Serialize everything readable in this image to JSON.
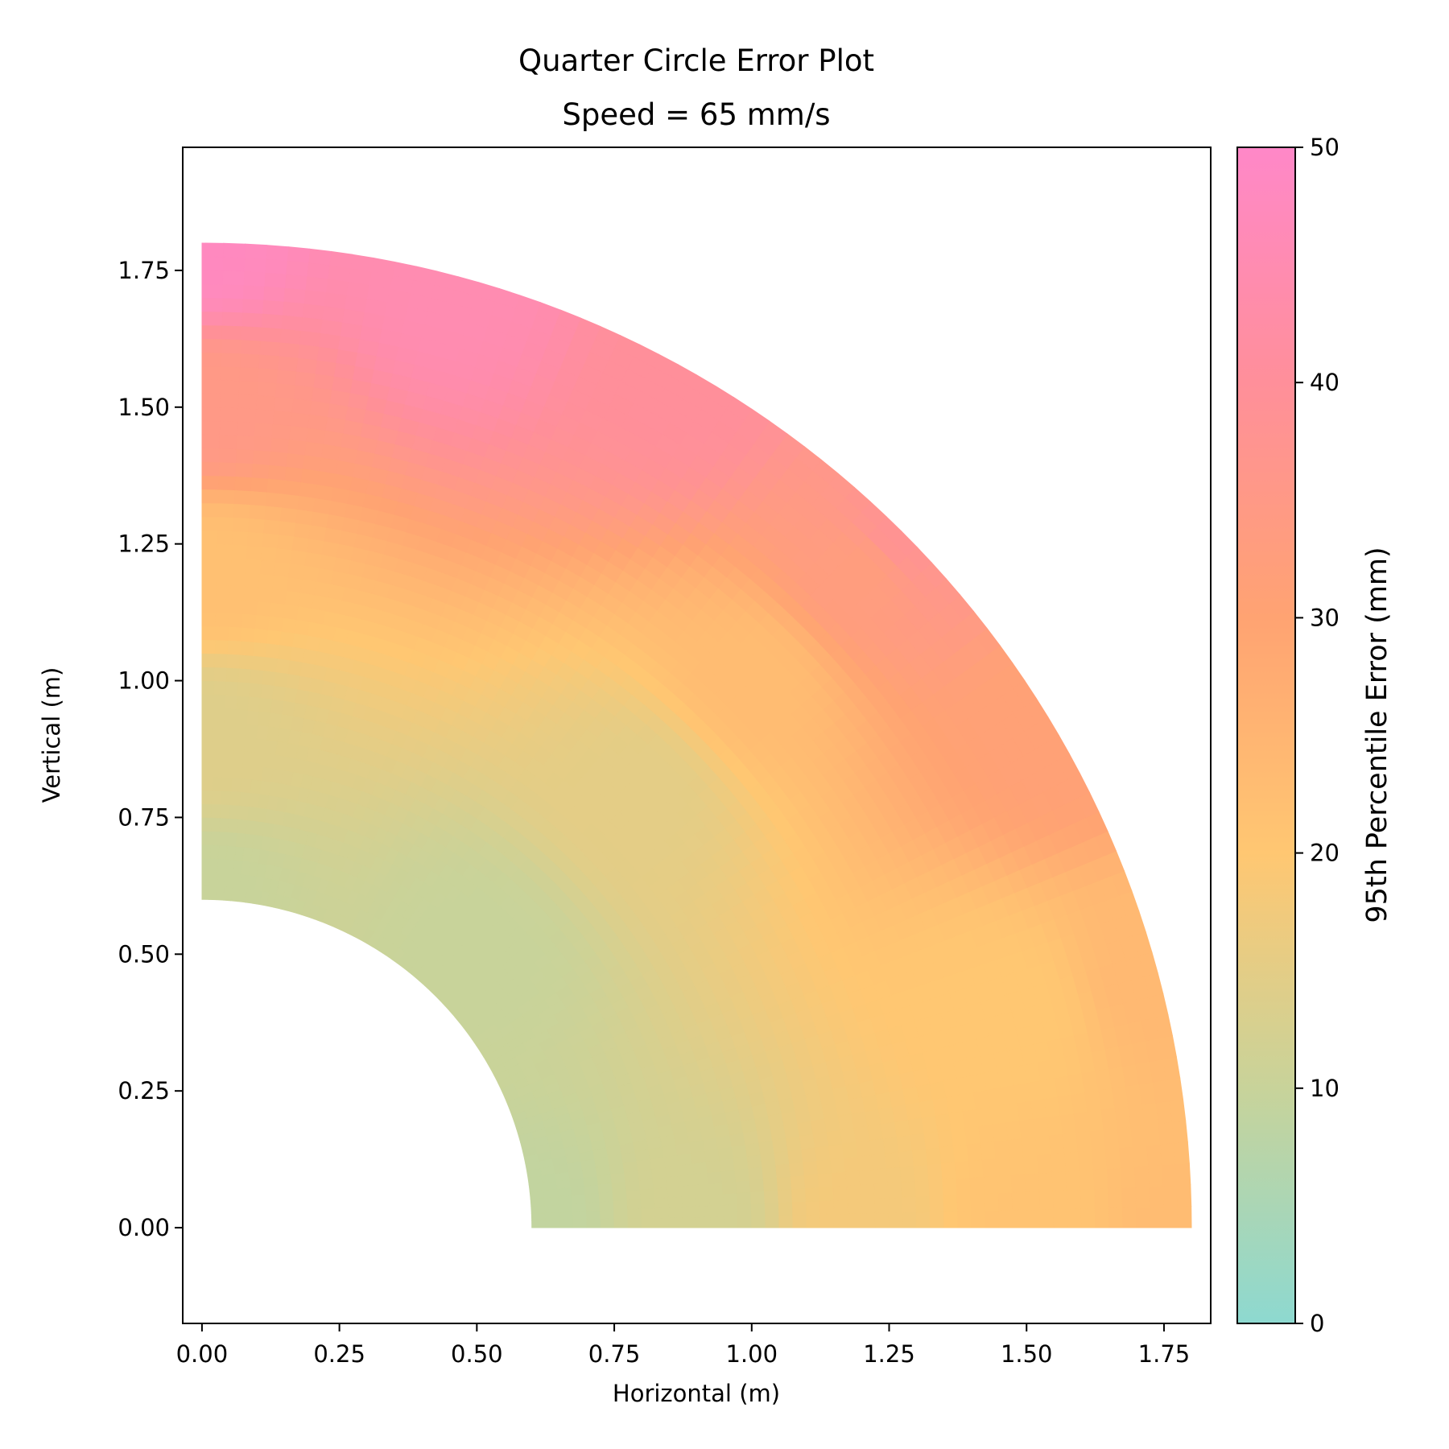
{
  "chart_data": {
    "type": "heatmap",
    "subtype": "polar-annular-sector",
    "title": "Quarter Circle Error Plot",
    "subtitle": "Speed = 65 mm/s",
    "xlabel": "Horizontal (m)",
    "ylabel": "Vertical (m)",
    "xlim": [
      -0.035,
      1.835
    ],
    "ylim": [
      -0.175,
      1.975
    ],
    "xticks": [
      0.0,
      0.25,
      0.5,
      0.75,
      1.0,
      1.25,
      1.5,
      1.75
    ],
    "xtick_labels": [
      "0.00",
      "0.25",
      "0.50",
      "0.75",
      "1.00",
      "1.25",
      "1.50",
      "1.75"
    ],
    "yticks": [
      0.0,
      0.25,
      0.5,
      0.75,
      1.0,
      1.25,
      1.5,
      1.75
    ],
    "ytick_labels": [
      "0.00",
      "0.25",
      "0.50",
      "0.75",
      "1.00",
      "1.25",
      "1.50",
      "1.75"
    ],
    "grid": false,
    "region": {
      "r_min": 0.6,
      "r_max": 1.8,
      "theta_min_deg": 0,
      "theta_max_deg": 90
    },
    "field_samples": [
      {
        "x": 0.6,
        "y": 0.0,
        "value": 9
      },
      {
        "x": 0.0,
        "y": 0.6,
        "value": 10
      },
      {
        "x": 0.9,
        "y": 0.0,
        "value": 12
      },
      {
        "x": 1.2,
        "y": 0.0,
        "value": 18
      },
      {
        "x": 1.5,
        "y": 0.0,
        "value": 21
      },
      {
        "x": 1.8,
        "y": 0.0,
        "value": 23
      },
      {
        "x": 0.0,
        "y": 0.9,
        "value": 14
      },
      {
        "x": 0.0,
        "y": 1.2,
        "value": 22
      },
      {
        "x": 0.0,
        "y": 1.5,
        "value": 35
      },
      {
        "x": 0.0,
        "y": 1.8,
        "value": 48
      },
      {
        "x": 0.5,
        "y": 0.5,
        "value": 10
      },
      {
        "x": 0.8,
        "y": 0.8,
        "value": 15
      },
      {
        "x": 1.0,
        "y": 1.0,
        "value": 23
      },
      {
        "x": 1.2,
        "y": 1.2,
        "value": 33
      },
      {
        "x": 1.27,
        "y": 1.27,
        "value": 38
      },
      {
        "x": 1.47,
        "y": 0.39,
        "value": 20
      },
      {
        "x": 1.74,
        "y": 0.47,
        "value": 24
      },
      {
        "x": 0.9,
        "y": 1.56,
        "value": 40
      },
      {
        "x": 0.47,
        "y": 1.74,
        "value": 45
      },
      {
        "x": 1.56,
        "y": 0.9,
        "value": 31
      }
    ],
    "colorbar": {
      "label": "95th Percentile Error (mm)",
      "range": [
        0,
        50
      ],
      "ticks": [
        0,
        10,
        20,
        30,
        40,
        50
      ],
      "tick_labels": [
        "0",
        "10",
        "20",
        "30",
        "40",
        "50"
      ],
      "colors": [
        {
          "value": 0,
          "color": "#8dd9d0"
        },
        {
          "value": 10,
          "color": "#c8d39a"
        },
        {
          "value": 20,
          "color": "#ffc772"
        },
        {
          "value": 30,
          "color": "#ffa372"
        },
        {
          "value": 40,
          "color": "#ff8f9a"
        },
        {
          "value": 50,
          "color": "#ff88c8"
        }
      ]
    }
  }
}
